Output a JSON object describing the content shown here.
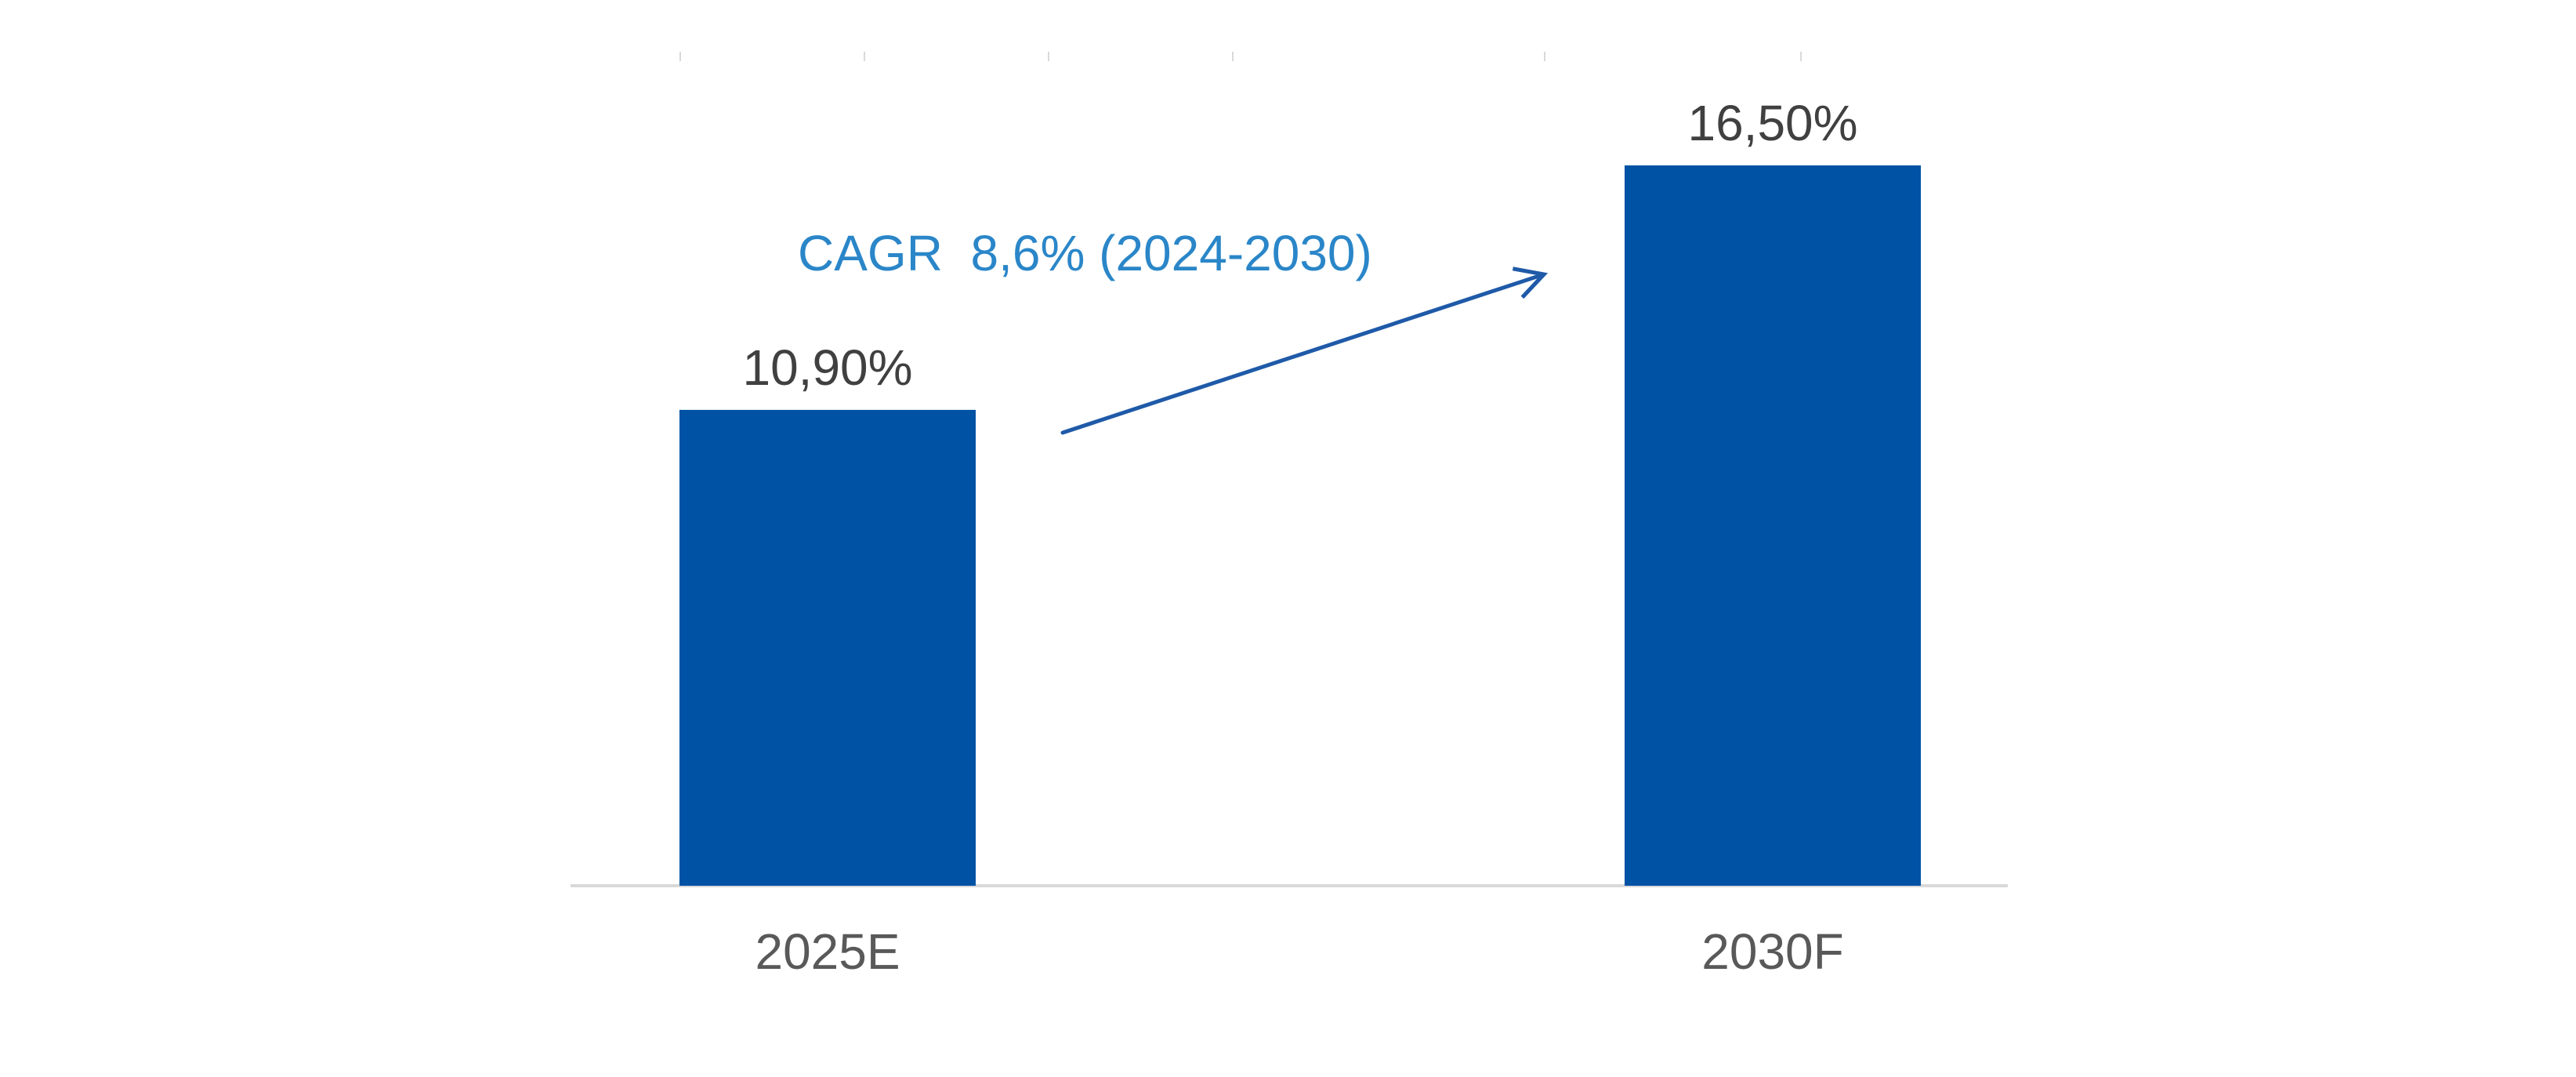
{
  "colors": {
    "bar": "#0052A5",
    "value_label": "#404040",
    "category_label": "#595959",
    "annotation": "#2A86C8",
    "arrow": "#1F5AA8",
    "axis": "#D9D9D9"
  },
  "chart_data": {
    "type": "bar",
    "title": "",
    "xlabel": "",
    "ylabel": "",
    "categories": [
      "2025E",
      "2030F"
    ],
    "values": [
      10.9,
      16.5
    ],
    "value_labels": [
      "10,90%",
      "16,50%"
    ],
    "ylim": [
      0,
      16.5
    ],
    "grid": false,
    "legend": "none",
    "annotations": [
      {
        "text": "CAGR  8,6% (2024-2030)",
        "type": "arrow"
      }
    ]
  }
}
